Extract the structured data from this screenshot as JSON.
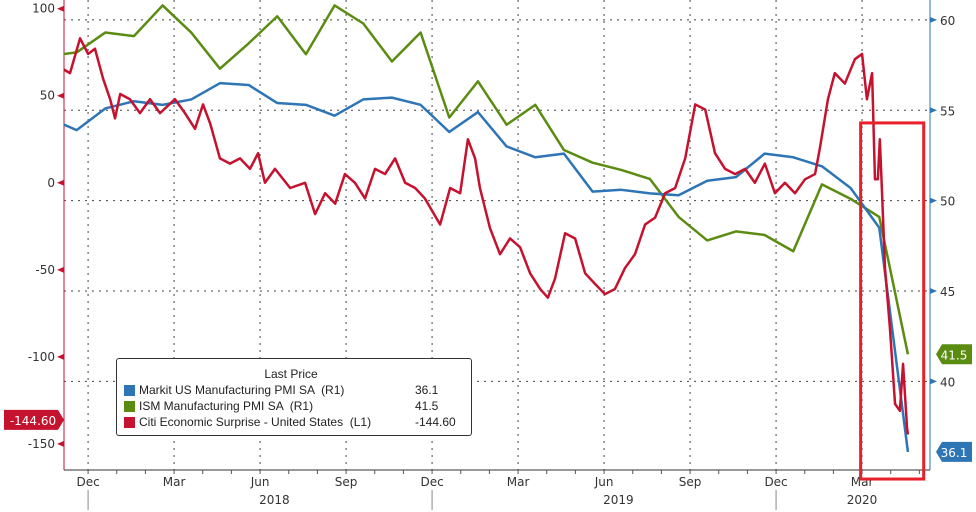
{
  "chart_data": {
    "type": "line",
    "title": "",
    "x_unit": "months since 2017-12-01",
    "xlim": [
      -0.84,
      29.37
    ],
    "left_axis": {
      "ylim": [
        -165,
        105
      ],
      "ticks": [
        100,
        50,
        0,
        -50,
        -100,
        -150
      ],
      "color": "#c4122f"
    },
    "right_axis": {
      "ylim": [
        35.1,
        61.1
      ],
      "ticks": [
        60,
        55,
        50,
        45,
        40
      ]
    },
    "x_ticks": [
      {
        "t": 0,
        "label": "Dec"
      },
      {
        "t": 3,
        "label": "Mar"
      },
      {
        "t": 6,
        "label": "Jun"
      },
      {
        "t": 9,
        "label": "Sep"
      },
      {
        "t": 12,
        "label": "Dec"
      },
      {
        "t": 15,
        "label": "Mar"
      },
      {
        "t": 18,
        "label": "Jun"
      },
      {
        "t": 21,
        "label": "Sep"
      },
      {
        "t": 24,
        "label": "Dec"
      },
      {
        "t": 27,
        "label": "Mar"
      }
    ],
    "year_labels": [
      {
        "t": 6.5,
        "label": "2018"
      },
      {
        "t": 18.5,
        "label": "2019"
      },
      {
        "t": 27,
        "label": "2020"
      }
    ],
    "grid": true,
    "legend": {
      "title": "Last Price",
      "position": "bottom-left"
    },
    "monthly_offset": 0.6,
    "monthly_start_t": -2,
    "series": [
      {
        "name": "Markit US Manufacturing PMI SA  (R1)",
        "last": "36.1",
        "axis": "right",
        "color": "#2e75b6",
        "values": [
          54.6,
          53.9,
          55.1,
          55.5,
          55.3,
          55.6,
          56.5,
          56.4,
          55.4,
          55.3,
          54.7,
          55.6,
          55.7,
          55.3,
          53.8,
          54.9,
          53.0,
          52.4,
          52.6,
          50.5,
          50.6,
          50.4,
          50.3,
          51.1,
          51.3,
          52.6,
          52.4,
          51.9,
          50.7,
          48.5,
          36.1
        ]
      },
      {
        "name": "ISM Manufacturing PMI SA  (R1)",
        "last": "41.5",
        "axis": "right",
        "color": "#5b8c12",
        "values": [
          58.0,
          58.2,
          59.3,
          59.1,
          60.8,
          59.3,
          57.3,
          58.7,
          60.2,
          58.1,
          60.8,
          59.8,
          57.7,
          59.3,
          54.6,
          56.6,
          54.2,
          55.3,
          52.8,
          52.1,
          51.7,
          51.2,
          49.1,
          47.8,
          48.3,
          48.1,
          47.2,
          50.9,
          50.1,
          49.1,
          41.5
        ]
      },
      {
        "name": "Citi Economic Surprise - United States  (L1)",
        "last": "-144.60",
        "axis": "left",
        "color": "#c4122f",
        "points": [
          [
            -0.84,
            65
          ],
          [
            -0.63,
            63
          ],
          [
            -0.28,
            83
          ],
          [
            0,
            74
          ],
          [
            0.24,
            77
          ],
          [
            0.52,
            60
          ],
          [
            0.77,
            48
          ],
          [
            0.94,
            37
          ],
          [
            1.12,
            51
          ],
          [
            1.46,
            48
          ],
          [
            1.81,
            40
          ],
          [
            2.16,
            48
          ],
          [
            2.51,
            40
          ],
          [
            3.03,
            48
          ],
          [
            3.38,
            40
          ],
          [
            3.73,
            31
          ],
          [
            4.01,
            45
          ],
          [
            4.26,
            34
          ],
          [
            4.6,
            14
          ],
          [
            4.95,
            11
          ],
          [
            5.3,
            14
          ],
          [
            5.65,
            8
          ],
          [
            5.93,
            17
          ],
          [
            6.17,
            0
          ],
          [
            6.52,
            8
          ],
          [
            7.05,
            -3
          ],
          [
            7.57,
            0
          ],
          [
            7.92,
            -18
          ],
          [
            8.27,
            -6
          ],
          [
            8.62,
            -12
          ],
          [
            8.96,
            5
          ],
          [
            9.31,
            0
          ],
          [
            9.66,
            -9
          ],
          [
            10.01,
            8
          ],
          [
            10.36,
            5
          ],
          [
            10.71,
            14
          ],
          [
            11.06,
            0
          ],
          [
            11.41,
            -3
          ],
          [
            11.75,
            -9
          ],
          [
            12.28,
            -24
          ],
          [
            12.63,
            -3
          ],
          [
            12.98,
            -6
          ],
          [
            13.25,
            25
          ],
          [
            13.5,
            14
          ],
          [
            13.67,
            -3
          ],
          [
            14.02,
            -26
          ],
          [
            14.37,
            -41
          ],
          [
            14.72,
            -32
          ],
          [
            15.07,
            -37
          ],
          [
            15.42,
            -52
          ],
          [
            15.77,
            -61
          ],
          [
            16.04,
            -66
          ],
          [
            16.29,
            -55
          ],
          [
            16.64,
            -29
          ],
          [
            16.99,
            -32
          ],
          [
            17.34,
            -52
          ],
          [
            17.68,
            -58
          ],
          [
            18.03,
            -64
          ],
          [
            18.38,
            -61
          ],
          [
            18.73,
            -49
          ],
          [
            19.08,
            -41
          ],
          [
            19.43,
            -24
          ],
          [
            19.78,
            -20
          ],
          [
            20.13,
            -6
          ],
          [
            20.48,
            -3
          ],
          [
            20.83,
            14
          ],
          [
            21.18,
            45
          ],
          [
            21.53,
            42
          ],
          [
            21.87,
            17
          ],
          [
            22.22,
            8
          ],
          [
            22.57,
            5
          ],
          [
            22.92,
            8
          ],
          [
            23.26,
            0
          ],
          [
            23.61,
            11
          ],
          [
            23.96,
            -6
          ],
          [
            24.31,
            0
          ],
          [
            24.66,
            -6
          ],
          [
            25.01,
            2
          ],
          [
            25.36,
            5
          ],
          [
            25.53,
            20
          ],
          [
            25.81,
            48
          ],
          [
            26.05,
            63
          ],
          [
            26.4,
            57
          ],
          [
            26.75,
            71
          ],
          [
            27.0,
            74
          ],
          [
            27.17,
            48
          ],
          [
            27.35,
            63
          ],
          [
            27.45,
            2
          ],
          [
            27.55,
            2
          ],
          [
            27.62,
            25
          ],
          [
            27.69,
            -3
          ],
          [
            27.8,
            -49
          ],
          [
            27.97,
            -83
          ],
          [
            28.15,
            -127
          ],
          [
            28.32,
            -131
          ],
          [
            28.43,
            -104
          ],
          [
            28.57,
            -141
          ],
          [
            28.6,
            -144.6
          ]
        ]
      }
    ],
    "annotation_box": {
      "t_range": [
        26.95,
        29.15
      ],
      "right_value_range": [
        34.6,
        54.3
      ],
      "color": "#e8202a"
    }
  }
}
